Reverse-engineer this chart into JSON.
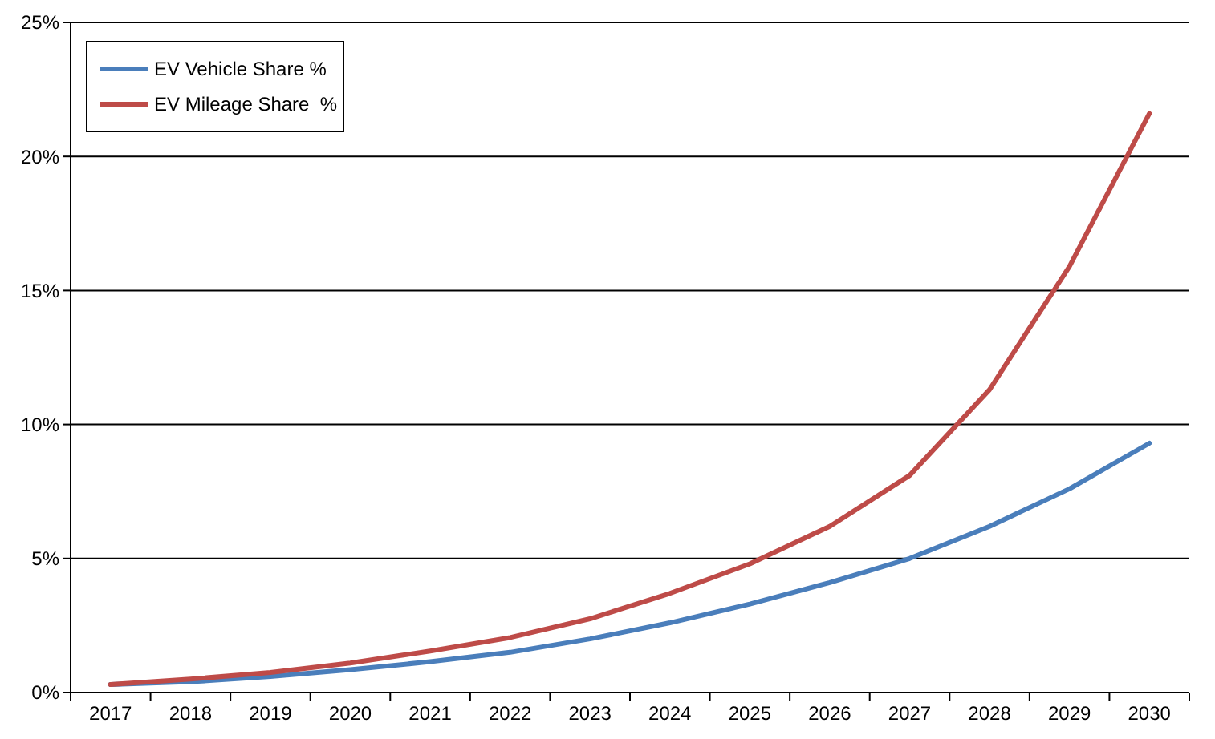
{
  "chart_data": {
    "type": "line",
    "categories": [
      "2017",
      "2018",
      "2019",
      "2020",
      "2021",
      "2022",
      "2023",
      "2024",
      "2025",
      "2026",
      "2027",
      "2028",
      "2029",
      "2030"
    ],
    "series": [
      {
        "name": "EV Vehicle Share %",
        "color": "#4a7ebb",
        "values": [
          0.3,
          0.4,
          0.6,
          0.85,
          1.15,
          1.5,
          2.0,
          2.6,
          3.3,
          4.1,
          5.0,
          6.2,
          7.6,
          9.3
        ]
      },
      {
        "name": "EV Mileage Share  %",
        "color": "#be4b48",
        "values": [
          0.3,
          0.5,
          0.75,
          1.1,
          1.55,
          2.05,
          2.75,
          3.7,
          4.8,
          6.2,
          8.1,
          11.3,
          15.9,
          21.6
        ]
      }
    ],
    "ylim": [
      0,
      25
    ],
    "yticks": [
      {
        "value": 0,
        "label": "0%"
      },
      {
        "value": 5,
        "label": "5%"
      },
      {
        "value": 10,
        "label": "10%"
      },
      {
        "value": 15,
        "label": "15%"
      },
      {
        "value": 20,
        "label": "20%"
      },
      {
        "value": 25,
        "label": "25%"
      }
    ],
    "grid": "y",
    "legend": "top left",
    "marker": "none",
    "line_style": "solid"
  }
}
